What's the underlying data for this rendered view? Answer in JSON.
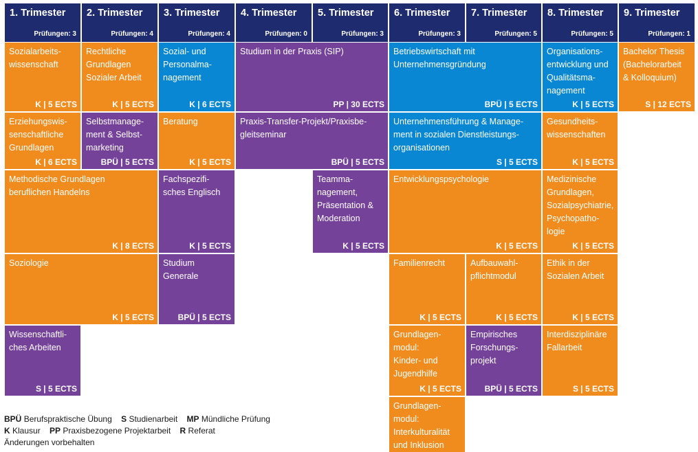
{
  "trimesters": [
    {
      "title": "1. Trimester",
      "exams": "Prüfungen: 3"
    },
    {
      "title": "2. Trimester",
      "exams": "Prüfungen: 4"
    },
    {
      "title": "3. Trimester",
      "exams": "Prüfungen: 4"
    },
    {
      "title": "4. Trimester",
      "exams": "Prüfungen: 0"
    },
    {
      "title": "5. Trimester",
      "exams": "Prüfungen: 3"
    },
    {
      "title": "6. Trimester",
      "exams": "Prüfungen: 3"
    },
    {
      "title": "7. Trimester",
      "exams": "Prüfungen: 5"
    },
    {
      "title": "8. Trimester",
      "exams": "Prüfungen: 5"
    },
    {
      "title": "9. Trimester",
      "exams": "Prüfungen: 1"
    }
  ],
  "modules": [
    {
      "name": "Sozialarbeits-\nwissenschaft",
      "ects": "K | 5 ECTS"
    },
    {
      "name": "Rechtliche\nGrundlagen\nSozialer Arbeit",
      "ects": "K | 5 ECTS"
    },
    {
      "name": "Sozial- und\nPersonalma-\nnagement",
      "ects": "K | 6 ECTS"
    },
    {
      "name": "Studium in der Praxis (SIP)",
      "ects": "PP | 30 ECTS"
    },
    {
      "name": "Betriebswirtschaft mit\nUnternehmensgründung",
      "ects": "BPÜ | 5 ECTS"
    },
    {
      "name": "Organisations-\nentwicklung und\nQualitätsma-\nnagement",
      "ects": "K | 5 ECTS"
    },
    {
      "name": "Bachelor Thesis\n(Bachelorarbeit\n& Kolloquium)",
      "ects": "S | 12 ECTS"
    },
    {
      "name": "Erziehungswis-\nsenschaftliche\nGrundlagen",
      "ects": "K | 6 ECTS"
    },
    {
      "name": "Selbstmanage-\nment & Selbst-\nmarketing",
      "ects": "BPÜ | 5 ECTS"
    },
    {
      "name": "Beratung",
      "ects": "K | 5 ECTS"
    },
    {
      "name": "Praxis-Transfer-Projekt/Praxisbe-\ngleitseminar",
      "ects": "BPÜ | 5 ECTS"
    },
    {
      "name": "Unternehmensführung & Manage-\nment in sozialen Dienstleistungs-\norganisationen",
      "ects": "S | 5 ECTS"
    },
    {
      "name": "Gesundheits-\nwissenschaften",
      "ects": "K | 5 ECTS"
    },
    {
      "name": "Methodische Grundlagen\nberuflichen Handelns",
      "ects": "K | 8 ECTS"
    },
    {
      "name": "Fachspezifi-\nsches Englisch",
      "ects": "K | 5 ECTS"
    },
    {
      "name": "Teamma-\nnagement,\nPräsentation &\nModeration",
      "ects": "K | 5 ECTS"
    },
    {
      "name": "Entwicklungspsychologie",
      "ects": "K | 5 ECTS"
    },
    {
      "name": "Medizinische\nGrundlagen,\nSozialpsychiatrie,\nPsychopatho-\nlogie",
      "ects": "K | 5 ECTS"
    },
    {
      "name": "Soziologie",
      "ects": "K | 5 ECTS"
    },
    {
      "name": "Studium\nGenerale",
      "ects": "BPÜ | 5 ECTS"
    },
    {
      "name": "Familienrecht",
      "ects": "K | 5 ECTS"
    },
    {
      "name": "Aufbauwahl-\npflichtmodul",
      "ects": "K | 5 ECTS"
    },
    {
      "name": "Ethik in der\nSozialen Arbeit",
      "ects": "K | 5 ECTS"
    },
    {
      "name": "Wissenschaftli-\nches Arbeiten",
      "ects": "S | 5 ECTS"
    },
    {
      "name": "Grundlagen-\nmodul:\nKinder- und\nJugendhilfe",
      "ects": "K | 5 ECTS"
    },
    {
      "name": "Empirisches\nForschungs-\nprojekt",
      "ects": "BPÜ | 5 ECTS"
    },
    {
      "name": "Interdisziplinäre\nFallarbeit",
      "ects": "S | 5 ECTS"
    },
    {
      "name": "Grundlagen-\nmodul:\nInterkulturalität\nund Inklusion",
      "ects": ""
    }
  ],
  "legend": {
    "bpu_abbr": "BPÜ",
    "bpu_text": "Berufspraktische Übung",
    "s_abbr": "S",
    "s_text": "Studienarbeit",
    "mp_abbr": "MP",
    "mp_text": "Mündliche Prüfung",
    "k_abbr": "K",
    "k_text": "Klausur",
    "pp_abbr": "PP",
    "pp_text": "Praxisbezogene Projektarbeit",
    "r_abbr": "R",
    "r_text": "Referat",
    "note": "Änderungen vorbehalten"
  }
}
